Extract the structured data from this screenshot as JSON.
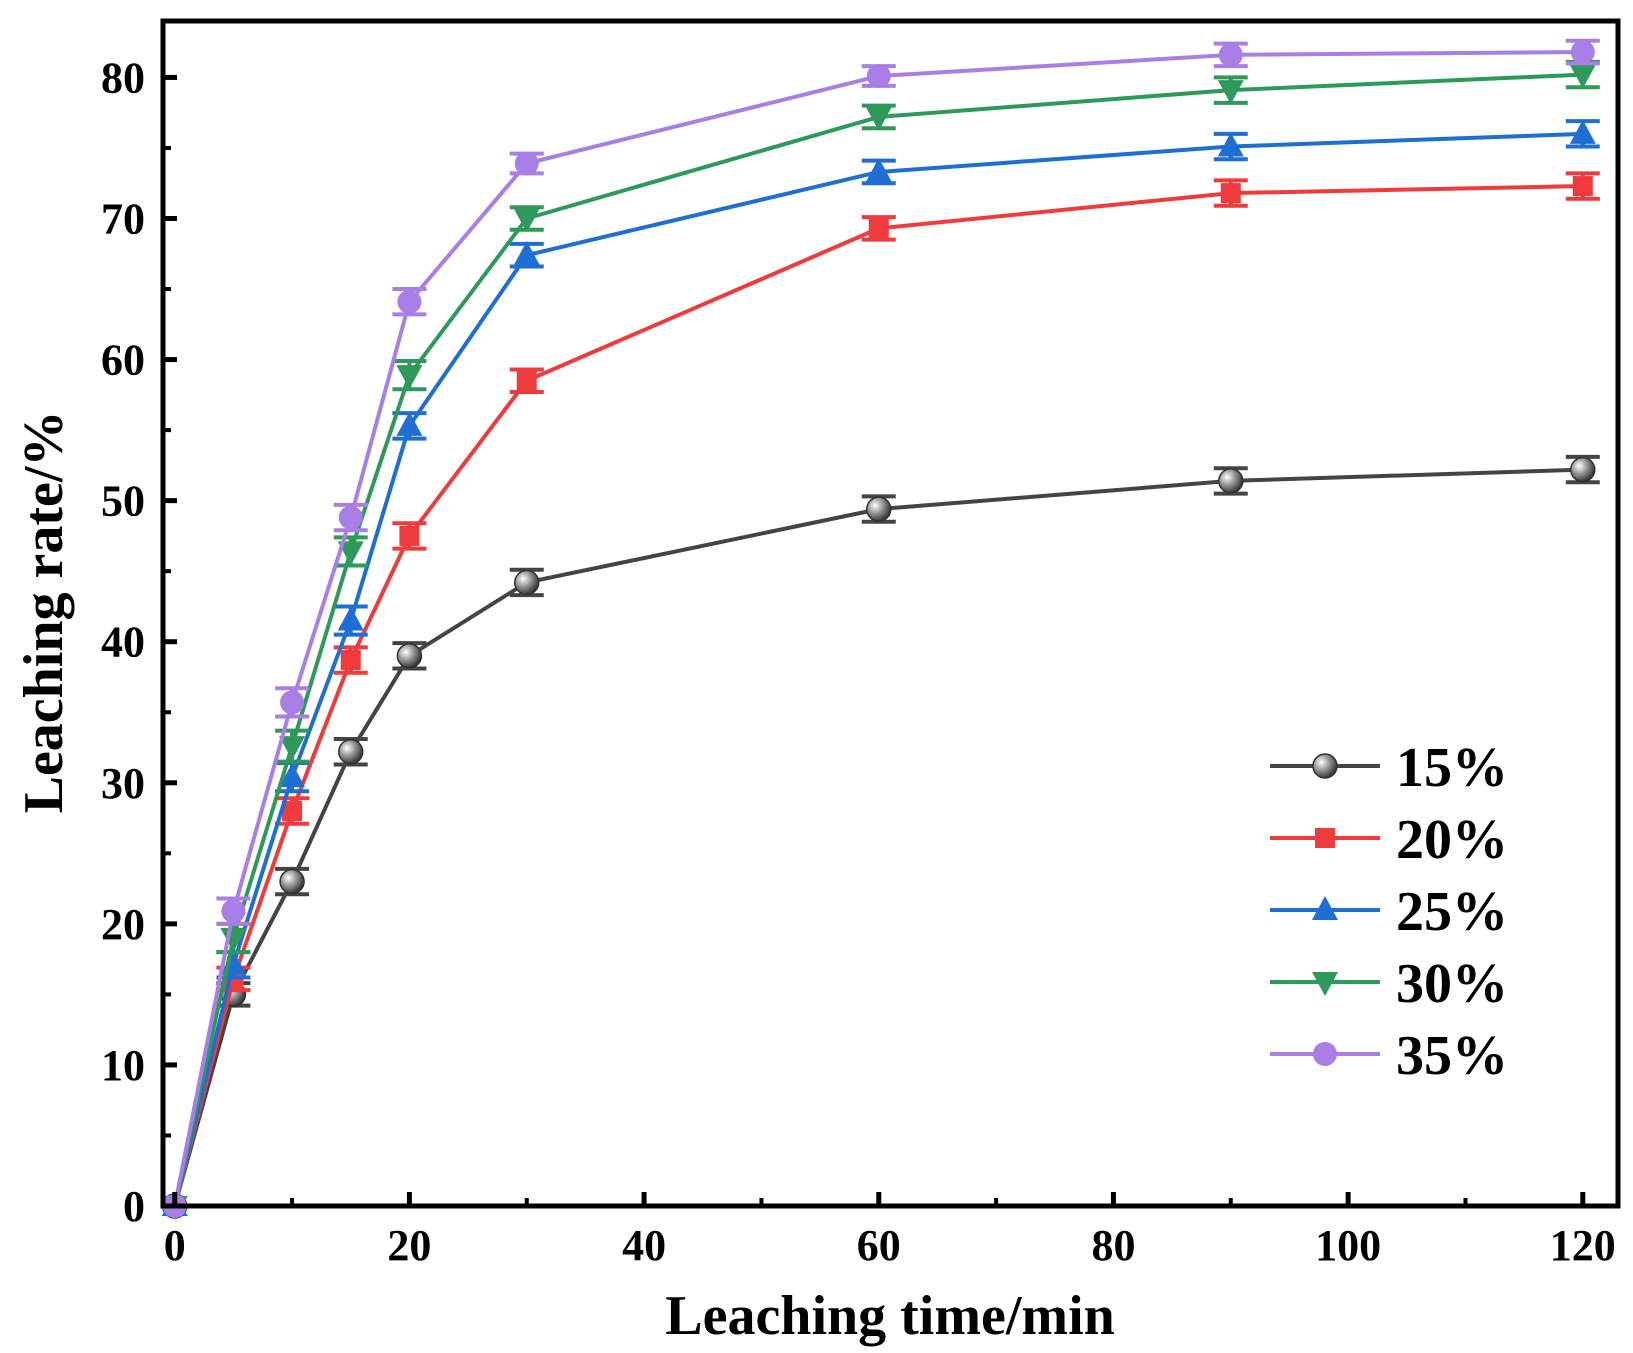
{
  "chart_data": {
    "type": "line",
    "title": "",
    "xlabel": "Leaching time/min",
    "ylabel": "Leaching rate/%",
    "xlim": [
      -1,
      123
    ],
    "ylim": [
      0,
      84
    ],
    "xticks": [
      0,
      20,
      40,
      60,
      80,
      100,
      120
    ],
    "xtick_labels": [
      "0",
      "20",
      "40",
      "60",
      "80",
      "100",
      "120"
    ],
    "yticks": [
      0,
      10,
      20,
      30,
      40,
      50,
      60,
      70,
      80
    ],
    "ytick_labels": [
      "0",
      "10",
      "20",
      "30",
      "40",
      "50",
      "60",
      "70",
      "80"
    ],
    "grid": false,
    "legend_position": "bottom-right",
    "x": [
      0,
      5,
      10,
      15,
      20,
      30,
      60,
      90,
      120
    ],
    "series": [
      {
        "name": "15%",
        "color": "#444444",
        "marker": "sphere",
        "values": [
          0,
          15.0,
          23.0,
          32.2,
          39.0,
          44.2,
          49.4,
          51.4,
          52.2
        ],
        "errors": [
          0,
          0.8,
          0.9,
          0.9,
          0.9,
          0.9,
          0.9,
          0.9,
          0.9
        ]
      },
      {
        "name": "20%",
        "color": "#ef3b3b",
        "marker": "square",
        "values": [
          0,
          16.1,
          28.0,
          38.7,
          47.5,
          58.5,
          69.3,
          71.8,
          72.3
        ],
        "errors": [
          0,
          0.8,
          0.9,
          0.9,
          0.9,
          0.8,
          0.8,
          0.9,
          0.9
        ]
      },
      {
        "name": "25%",
        "color": "#1f6ed4",
        "marker": "triangle-up",
        "values": [
          0,
          17.1,
          30.4,
          41.5,
          55.3,
          67.4,
          73.3,
          75.1,
          76.0
        ],
        "errors": [
          0,
          0.9,
          1.0,
          1.0,
          0.9,
          0.8,
          0.8,
          0.9,
          0.9
        ]
      },
      {
        "name": "30%",
        "color": "#2e9a5a",
        "marker": "triangle-down",
        "values": [
          0,
          19.0,
          32.6,
          46.4,
          58.9,
          70.0,
          77.2,
          79.1,
          80.2
        ],
        "errors": [
          0,
          1.0,
          1.1,
          1.0,
          1.0,
          0.8,
          0.8,
          0.9,
          0.9
        ]
      },
      {
        "name": "35%",
        "color": "#a97ee6",
        "marker": "circle",
        "values": [
          0,
          20.9,
          35.7,
          48.8,
          64.1,
          73.9,
          80.1,
          81.6,
          81.8
        ],
        "errors": [
          0,
          0.9,
          1.0,
          0.9,
          0.9,
          0.7,
          0.7,
          0.8,
          0.8
        ]
      }
    ]
  }
}
